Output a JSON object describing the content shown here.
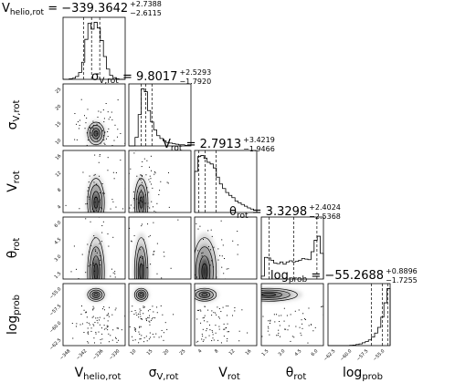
{
  "chart_data": {
    "type": "corner",
    "parameters": [
      {
        "key": "vhelio",
        "label": "V_helio,rot",
        "title": "V_helio,rot = −339.3642",
        "median": -339.3642,
        "err_plus": "+2.7388",
        "err_minus": "−2.6115",
        "range": [
          -349,
          -328
        ],
        "ticks": [
          "−348",
          "−342",
          "−336",
          "−330"
        ]
      },
      {
        "key": "sigma",
        "label": "σ_V,rot",
        "title": "σ_V,rot = 9.8017",
        "median": 9.8017,
        "err_plus": "+2.5293",
        "err_minus": "−1.7920",
        "range": [
          3,
          28
        ],
        "ticks": [
          "10",
          "15",
          "20",
          "25"
        ]
      },
      {
        "key": "vrot",
        "label": "V_rot",
        "title": "V_rot = 2.7913",
        "median": 2.7913,
        "err_plus": "+3.4219",
        "err_minus": "−1.9466",
        "range": [
          -0.5,
          19
        ],
        "ticks": [
          "4",
          "8",
          "12",
          "16"
        ]
      },
      {
        "key": "theta",
        "label": "θ_rot",
        "title": "θ_rot = 3.3298",
        "median": 3.3298,
        "err_plus": "+2.4024",
        "err_minus": "−2.5368",
        "range": [
          0,
          6.4
        ],
        "ticks": [
          "1.5",
          "3.0",
          "4.5",
          "6.0"
        ]
      },
      {
        "key": "logprob",
        "label": "log_prob",
        "title": "log_prob = −55.2688",
        "median": -55.2688,
        "err_plus": "+0.8896",
        "err_minus": "−1.7255",
        "range": [
          -64,
          -54
        ],
        "ticks": [
          "−62.5",
          "−60.0",
          "−57.5",
          "−55.0"
        ]
      }
    ],
    "row_ticks": {
      "sigma": [
        "25",
        "20",
        "15",
        "10"
      ],
      "vrot": [
        "16",
        "12",
        "8",
        "4"
      ],
      "theta": [
        "6.0",
        "4.5",
        "3.0",
        "1.5"
      ],
      "logprob": [
        "−55.0",
        "−57.5",
        "−60.0",
        "−62.5"
      ]
    },
    "histograms": {
      "vhelio": [
        0,
        0,
        0.01,
        0.02,
        0.05,
        0.12,
        0.3,
        0.7,
        0.98,
        0.88,
        1.0,
        0.9,
        0.68,
        0.4,
        0.18,
        0.07,
        0.03,
        0.01,
        0,
        0
      ],
      "sigma": [
        0,
        0,
        0.15,
        0.55,
        1.0,
        0.95,
        0.62,
        0.42,
        0.28,
        0.18,
        0.13,
        0.09,
        0.06,
        0.05,
        0.04,
        0.03,
        0.02,
        0.02,
        0.01,
        0.01
      ],
      "vrot": [
        0.72,
        0.98,
        1.0,
        0.95,
        0.88,
        0.85,
        0.78,
        0.62,
        0.5,
        0.42,
        0.35,
        0.3,
        0.26,
        0.2,
        0.17,
        0.14,
        0.11,
        0.08,
        0.06,
        0.04
      ],
      "theta": [
        0.05,
        0.38,
        0.37,
        0.33,
        0.28,
        0.27,
        0.3,
        0.26,
        0.3,
        0.32,
        0.3,
        0.31,
        0.33,
        0.36,
        0.35,
        0.34,
        0.48,
        0.68,
        0.75,
        0.45
      ],
      "logprob": [
        0,
        0,
        0,
        0,
        0,
        0,
        0,
        0.005,
        0.01,
        0.02,
        0.03,
        0.05,
        0.07,
        0.1,
        0.15,
        0.22,
        0.32,
        0.5,
        0.75,
        1.0
      ]
    },
    "quantiles": {
      "vhelio": [
        -342.0,
        -339.36,
        -336.6
      ],
      "sigma": [
        8.0,
        9.8,
        12.3
      ],
      "vrot": [
        0.84,
        2.79,
        6.2
      ],
      "theta": [
        0.79,
        3.33,
        5.73
      ],
      "logprob": [
        -57.0,
        -55.27,
        -54.4
      ]
    },
    "grid": false,
    "legend": "none"
  }
}
